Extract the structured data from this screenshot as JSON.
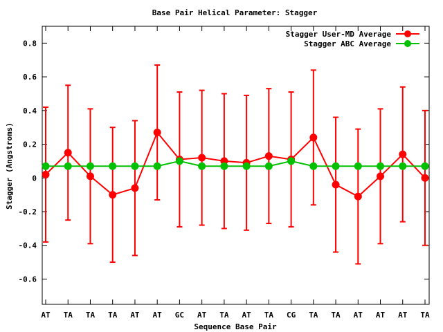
{
  "chart_data": {
    "type": "line",
    "title": "Base Pair Helical Parameter: Stagger",
    "xlabel": "Sequence Base Pair",
    "ylabel": "Stagger (Angstroms)",
    "ylim": [
      -0.75,
      0.9
    ],
    "yticks": [
      {
        "value": 0.8,
        "label": "0.8"
      },
      {
        "value": 0.6,
        "label": "0.6"
      },
      {
        "value": 0.4,
        "label": "0.4"
      },
      {
        "value": 0.2,
        "label": "0.2"
      },
      {
        "value": 0,
        "label": "0"
      },
      {
        "value": -0.2,
        "label": "-0.2"
      },
      {
        "value": -0.4,
        "label": "-0.4"
      },
      {
        "value": -0.6,
        "label": "-0.6"
      }
    ],
    "categories": [
      "AT",
      "TA",
      "TA",
      "TA",
      "AT",
      "AT",
      "GC",
      "AT",
      "TA",
      "AT",
      "TA",
      "CG",
      "TA",
      "TA",
      "AT",
      "AT",
      "AT",
      "TA"
    ],
    "grid": false,
    "legend_position": "top-right",
    "series": [
      {
        "name": "Stagger User-MD Average",
        "color": "#ff0000",
        "values": [
          0.02,
          0.15,
          0.01,
          -0.1,
          -0.06,
          0.27,
          0.11,
          0.12,
          0.1,
          0.09,
          0.13,
          0.11,
          0.24,
          -0.04,
          -0.11,
          0.01,
          0.14,
          0.0
        ],
        "errors": [
          0.4,
          0.4,
          0.4,
          0.4,
          0.4,
          0.4,
          0.4,
          0.4,
          0.4,
          0.4,
          0.4,
          0.4,
          0.4,
          0.4,
          0.4,
          0.4,
          0.4,
          0.4
        ]
      },
      {
        "name": "Stagger ABC Average",
        "color": "#00c000",
        "values": [
          0.07,
          0.07,
          0.07,
          0.07,
          0.07,
          0.07,
          0.1,
          0.07,
          0.07,
          0.07,
          0.07,
          0.1,
          0.07,
          0.07,
          0.07,
          0.07,
          0.07,
          0.07
        ]
      }
    ]
  }
}
